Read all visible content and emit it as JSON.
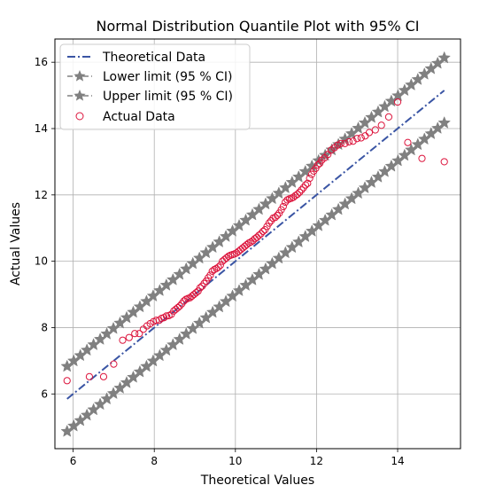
{
  "chart_data": {
    "type": "scatter",
    "title": "Normal Distribution Quantile Plot with 95% CI",
    "xlabel": "Theoretical Values",
    "ylabel": "Actual Values",
    "xlim": [
      5.55,
      15.55
    ],
    "ylim": [
      4.35,
      16.7
    ],
    "xticks": [
      6,
      8,
      10,
      12,
      14
    ],
    "yticks": [
      6,
      8,
      10,
      12,
      14,
      16
    ],
    "grid": true,
    "legend_position": "top-left",
    "reference_line": {
      "name": "Theoretical Data",
      "x": [
        5.85,
        15.15
      ],
      "y": [
        5.85,
        15.15
      ],
      "color": "#3a55a4",
      "style": "dash-dot"
    },
    "lower_band": {
      "name": "Lower limit (95 % CI)",
      "x_start": 5.85,
      "x_end": 15.15,
      "offset": -0.98,
      "points": 58,
      "color": "#808080",
      "marker": "star"
    },
    "upper_band": {
      "name": "Upper limit (95 % CI)",
      "x_start": 5.85,
      "x_end": 15.15,
      "offset": 0.98,
      "points": 58,
      "color": "#808080",
      "marker": "star"
    },
    "actual": {
      "name": "Actual Data",
      "color": "#dc143c",
      "marker": "open-circle",
      "x": [
        5.85,
        6.4,
        6.75,
        7.0,
        7.22,
        7.38,
        7.52,
        7.63,
        7.73,
        7.82,
        7.9,
        7.98,
        8.05,
        8.12,
        8.18,
        8.24,
        8.3,
        8.36,
        8.42,
        8.48,
        8.53,
        8.58,
        8.63,
        8.68,
        8.73,
        8.78,
        8.83,
        8.88,
        8.93,
        8.98,
        9.03,
        9.08,
        9.13,
        9.18,
        9.23,
        9.28,
        9.33,
        9.38,
        9.43,
        9.48,
        9.53,
        9.58,
        9.63,
        9.68,
        9.73,
        9.78,
        9.83,
        9.88,
        9.93,
        9.98,
        10.03,
        10.08,
        10.13,
        10.18,
        10.23,
        10.28,
        10.33,
        10.38,
        10.43,
        10.48,
        10.53,
        10.58,
        10.63,
        10.68,
        10.73,
        10.78,
        10.83,
        10.88,
        10.93,
        10.98,
        11.03,
        11.08,
        11.13,
        11.18,
        11.23,
        11.28,
        11.33,
        11.38,
        11.43,
        11.48,
        11.53,
        11.58,
        11.63,
        11.68,
        11.73,
        11.78,
        11.83,
        11.88,
        11.93,
        11.98,
        12.03,
        12.08,
        12.13,
        12.2,
        12.28,
        12.36,
        12.44,
        12.52,
        12.6,
        12.7,
        12.8,
        12.9,
        13.0,
        13.1,
        13.2,
        13.3,
        13.45,
        13.6,
        13.78,
        14.0,
        14.25,
        14.6,
        15.15
      ],
      "y": [
        6.4,
        6.52,
        6.52,
        6.9,
        7.62,
        7.7,
        7.82,
        7.82,
        7.95,
        8.05,
        8.12,
        8.18,
        8.22,
        8.22,
        8.28,
        8.3,
        8.35,
        8.36,
        8.4,
        8.5,
        8.55,
        8.6,
        8.65,
        8.72,
        8.8,
        8.85,
        8.88,
        8.9,
        8.95,
        9.0,
        9.05,
        9.1,
        9.2,
        9.25,
        9.33,
        9.4,
        9.5,
        9.58,
        9.7,
        9.75,
        9.78,
        9.82,
        9.88,
        10.0,
        10.05,
        10.1,
        10.15,
        10.18,
        10.2,
        10.22,
        10.25,
        10.3,
        10.35,
        10.4,
        10.45,
        10.5,
        10.55,
        10.58,
        10.62,
        10.68,
        10.72,
        10.78,
        10.83,
        10.9,
        10.95,
        11.05,
        11.15,
        11.22,
        11.3,
        11.32,
        11.38,
        11.45,
        11.55,
        11.65,
        11.78,
        11.85,
        11.88,
        11.9,
        11.93,
        11.98,
        12.02,
        12.08,
        12.15,
        12.22,
        12.3,
        12.35,
        12.5,
        12.62,
        12.72,
        12.8,
        12.9,
        12.95,
        13.05,
        13.12,
        13.22,
        13.35,
        13.42,
        13.5,
        13.55,
        13.55,
        13.6,
        13.62,
        13.7,
        13.72,
        13.78,
        13.88,
        13.96,
        14.1,
        14.35,
        14.8,
        13.58,
        13.1,
        13.0
      ]
    },
    "legend": [
      {
        "label": "Theoretical Data",
        "kind": "line"
      },
      {
        "label": "Lower limit (95 % CI)",
        "kind": "star-line"
      },
      {
        "label": "Upper limit (95 % CI)",
        "kind": "star-line"
      },
      {
        "label": "Actual Data",
        "kind": "circle"
      }
    ]
  }
}
